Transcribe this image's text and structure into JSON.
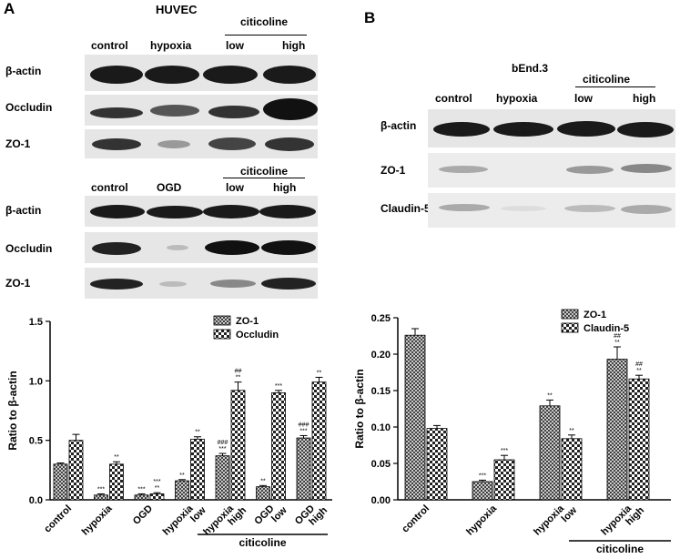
{
  "panelA": {
    "letter": "A",
    "cell": "HUVEC",
    "hypoxia_group": {
      "bracket": "citicoline",
      "lanes": [
        "control",
        "hypoxia",
        "low",
        "high"
      ],
      "rows": [
        "β-actin",
        "Occludin",
        "ZO-1"
      ]
    },
    "ogd_group": {
      "bracket": "citicoline",
      "lanes": [
        "control",
        "OGD",
        "low",
        "high"
      ],
      "rows": [
        "β-actin",
        "Occludin",
        "ZO-1"
      ]
    }
  },
  "panelB": {
    "letter": "B",
    "cell": "bEnd.3",
    "bracket": "citicoline",
    "lanes": [
      "control",
      "hypoxia",
      "low",
      "high"
    ],
    "rows": [
      "β-actin",
      "ZO-1",
      "Claudin-5"
    ]
  },
  "chart_data": [
    {
      "type": "bar",
      "ylabel": "Ratio to β-actin",
      "ylim": [
        0,
        1.5
      ],
      "yticks": [
        0.0,
        0.5,
        1.0,
        1.5
      ],
      "categories": [
        "control",
        "hypoxia",
        "OGD",
        "hypoxia low",
        "hypoxia high",
        "OGD low",
        "OGD high"
      ],
      "cat_line1": [
        "control",
        "hypoxia",
        "OGD",
        "hypoxia",
        "hypoxia",
        "OGD",
        "OGD"
      ],
      "cat_line2": [
        "",
        "",
        "",
        "low",
        "high",
        "low",
        "high"
      ],
      "group_label": "citicoline",
      "legend_position": "top-right",
      "series": [
        {
          "name": "ZO-1",
          "values": [
            0.3,
            0.04,
            0.04,
            0.16,
            0.37,
            0.11,
            0.52
          ],
          "errors": [
            0.01,
            0.01,
            0.01,
            0.01,
            0.02,
            0.01,
            0.02
          ],
          "annotations": [
            "",
            "***",
            "***",
            "**",
            "###\n***",
            "**",
            "###\n***"
          ]
        },
        {
          "name": "Occludin",
          "values": [
            0.5,
            0.3,
            0.05,
            0.51,
            0.92,
            0.9,
            0.99
          ],
          "errors": [
            0.05,
            0.02,
            0.01,
            0.02,
            0.07,
            0.02,
            0.04
          ],
          "annotations": [
            "",
            "**",
            "***\n**",
            "**",
            "##\n**",
            "***",
            "**"
          ]
        }
      ]
    },
    {
      "type": "bar",
      "ylabel": "Ratio to β-actin",
      "ylim": [
        0,
        0.25
      ],
      "yticks": [
        0.0,
        0.05,
        0.1,
        0.15,
        0.2,
        0.25
      ],
      "categories": [
        "control",
        "hypoxia",
        "hypoxia low",
        "hypoxia high"
      ],
      "cat_line1": [
        "control",
        "hypoxia",
        "hypoxia",
        "hypoxia"
      ],
      "cat_line2": [
        "",
        "",
        "low",
        "high"
      ],
      "group_label": "citicoline",
      "legend_position": "top-right",
      "series": [
        {
          "name": "ZO-1",
          "values": [
            0.226,
            0.025,
            0.129,
            0.193
          ],
          "errors": [
            0.009,
            0.002,
            0.008,
            0.017
          ],
          "annotations": [
            "",
            "***",
            "**",
            "##\n**"
          ]
        },
        {
          "name": "Claudin-5",
          "values": [
            0.098,
            0.055,
            0.084,
            0.166
          ],
          "errors": [
            0.004,
            0.006,
            0.005,
            0.005
          ],
          "annotations": [
            "",
            "***",
            "**",
            "##\n**"
          ]
        }
      ]
    }
  ]
}
